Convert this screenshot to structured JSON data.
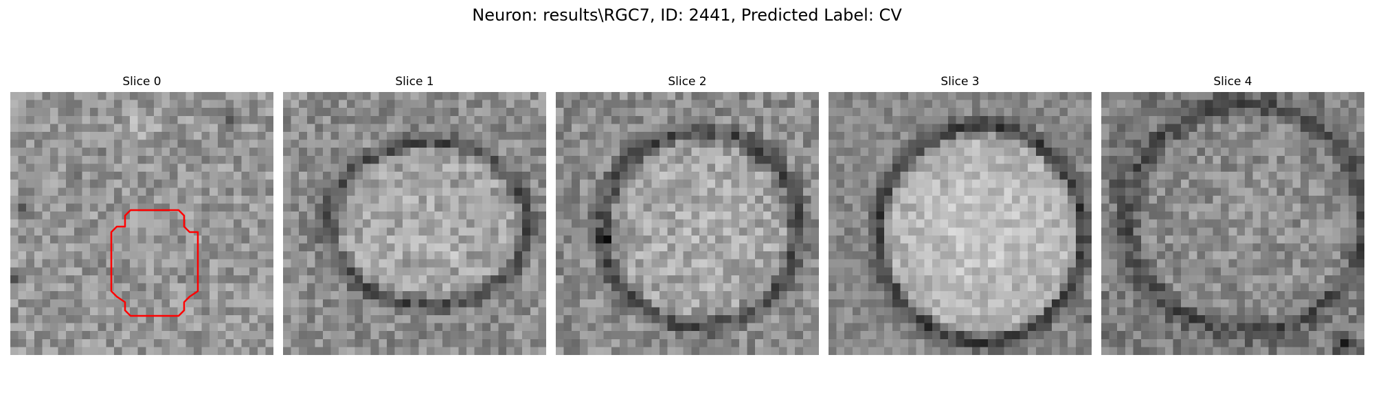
{
  "figure": {
    "title": "Neuron: results\\RGC7, ID: 2441, Predicted Label: CV"
  },
  "panels": [
    {
      "title": "Slice 0",
      "has_outline": true
    },
    {
      "title": "Slice 1",
      "has_outline": false
    },
    {
      "title": "Slice 2",
      "has_outline": false
    },
    {
      "title": "Slice 3",
      "has_outline": false
    },
    {
      "title": "Slice 4",
      "has_outline": false
    }
  ],
  "colors": {
    "outline": "#ff0000",
    "background": "#ffffff"
  }
}
